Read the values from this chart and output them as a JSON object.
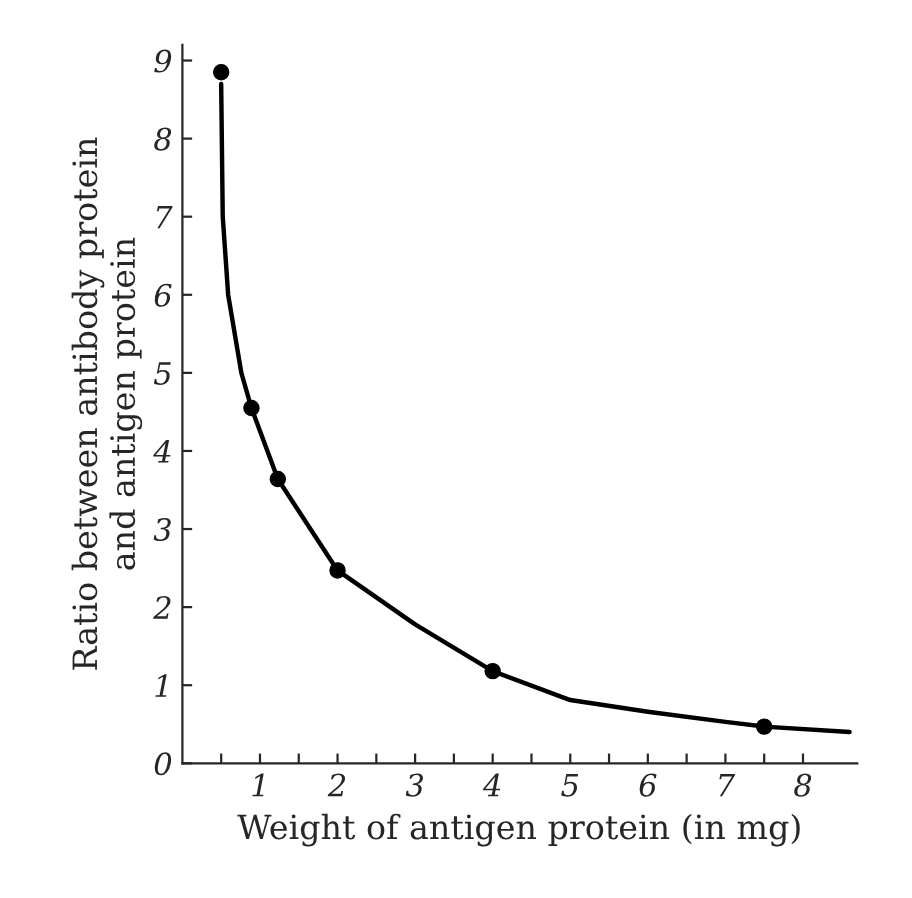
{
  "chart_data": {
    "type": "scatter",
    "xlabel": "Weight of antigen protein (in mg)",
    "ylabel": "Ratio between antibody protein\nand antigen protein",
    "series": [
      {
        "type": "line",
        "color": "#000000",
        "marker": "none",
        "x": [
          0.5,
          0.52,
          0.59,
          0.76,
          0.89,
          1.23,
          2.0,
          3.0,
          4.0,
          5.0,
          6.0,
          7.0,
          7.5,
          8.6
        ],
        "values": [
          8.7,
          7.0,
          6.0,
          5.0,
          4.55,
          3.64,
          2.47,
          1.78,
          1.18,
          0.81,
          0.66,
          0.53,
          0.47,
          0.4
        ]
      },
      {
        "color": "#000000",
        "marker": "circle",
        "x": [
          0.5,
          0.89,
          1.23,
          2.0,
          4.0,
          7.5
        ],
        "values": [
          8.85,
          4.55,
          3.64,
          2.47,
          1.18,
          0.47
        ]
      }
    ],
    "xlim": [
      0,
      8.7
    ],
    "ylim": [
      0,
      9.2
    ],
    "xticks": [
      {
        "value": 0.5,
        "label": null
      },
      1,
      {
        "value": 1.5,
        "label": null
      },
      2,
      {
        "value": 2.5,
        "label": null
      },
      3,
      {
        "value": 3.5,
        "label": null
      },
      4,
      {
        "value": 4.5,
        "label": null
      },
      5,
      {
        "value": 5.5,
        "label": null
      },
      6,
      {
        "value": 6.5,
        "label": null
      },
      7,
      {
        "value": 7.5,
        "label": null
      },
      8
    ],
    "yticks": [
      0,
      1,
      2,
      3,
      4,
      5,
      6,
      7,
      8,
      9
    ],
    "grid": false,
    "legend": false
  }
}
